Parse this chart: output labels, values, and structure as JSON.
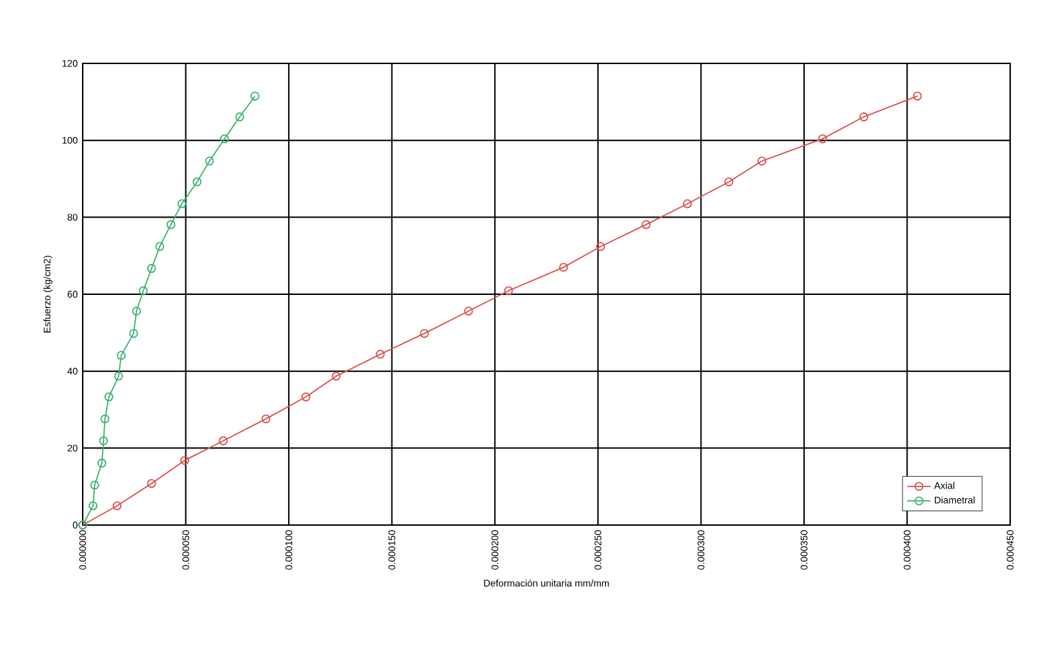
{
  "chart_data": {
    "type": "line",
    "xlabel": "Deformación unitaria mm/mm",
    "ylabel": "Esfuerzo (kg/cm2)",
    "xlim": [
      0,
      0.00045
    ],
    "ylim": [
      0,
      120
    ],
    "xticks": [
      {
        "value": 0,
        "label": "0.000000"
      },
      {
        "value": 5e-05,
        "label": "0.000050"
      },
      {
        "value": 0.0001,
        "label": "0.000100"
      },
      {
        "value": 0.00015,
        "label": "0.000150"
      },
      {
        "value": 0.0002,
        "label": "0.000200"
      },
      {
        "value": 0.00025,
        "label": "0.000250"
      },
      {
        "value": 0.0003,
        "label": "0.000300"
      },
      {
        "value": 0.00035,
        "label": "0.000350"
      },
      {
        "value": 0.0004,
        "label": "0.000400"
      },
      {
        "value": 0.00045,
        "label": "0.000450"
      }
    ],
    "yticks": [
      0,
      20,
      40,
      60,
      80,
      100,
      120
    ],
    "grid": true,
    "legend": "bottom right",
    "marker": "circle",
    "line_style": "solid",
    "series": [
      {
        "name": "Axial",
        "color": "#d9534f",
        "x": [
          0,
          1.67e-05,
          3.34e-05,
          4.95e-05,
          6.82e-05,
          8.89e-05,
          0.0001083,
          0.000123,
          0.0001444,
          0.0001658,
          0.0001872,
          0.0002066,
          0.0002333,
          0.0002513,
          0.0002734,
          0.0002934,
          0.0003135,
          0.0003295,
          0.000359,
          0.000379,
          0.000405
        ],
        "values": [
          0,
          5.0,
          10.8,
          16.8,
          21.9,
          27.6,
          33.3,
          38.7,
          44.4,
          49.8,
          55.6,
          60.9,
          67.0,
          72.4,
          78.1,
          83.5,
          89.2,
          94.6,
          100.4,
          106.1,
          111.5
        ]
      },
      {
        "name": "Diametral",
        "color": "#3cb371",
        "x": [
          0,
          5e-06,
          5.8e-06,
          9.3e-06,
          1.01e-05,
          1.08e-05,
          1.27e-05,
          1.74e-05,
          1.87e-05,
          2.47e-05,
          2.61e-05,
          2.94e-05,
          3.34e-05,
          3.74e-05,
          4.28e-05,
          4.81e-05,
          5.55e-05,
          6.15e-05,
          6.88e-05,
          7.62e-05,
          8.36e-05
        ],
        "values": [
          0,
          5.0,
          10.4,
          16.1,
          21.9,
          27.6,
          33.3,
          38.7,
          44.1,
          49.8,
          55.6,
          60.9,
          66.7,
          72.4,
          78.1,
          83.5,
          89.2,
          94.6,
          100.4,
          106.1,
          111.5
        ]
      }
    ]
  }
}
